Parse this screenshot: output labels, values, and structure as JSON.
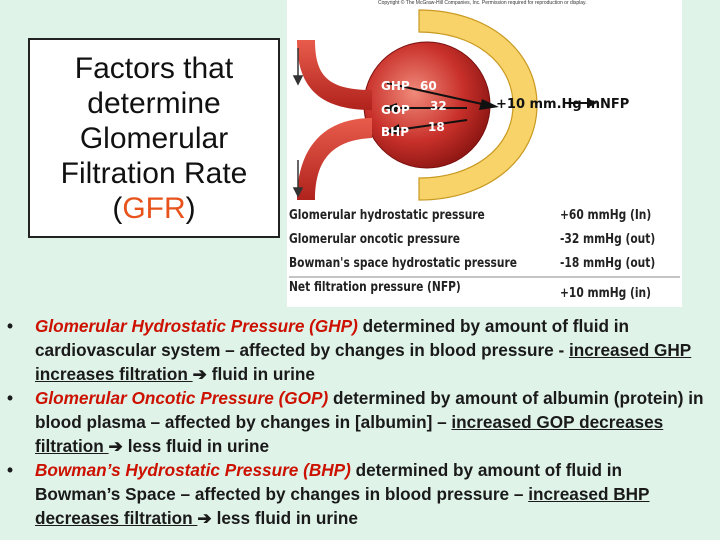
{
  "title": {
    "lines": [
      "Factors that",
      "determine",
      "Glomerular",
      "Filtration Rate"
    ],
    "acronym_open": "(",
    "acronym": "GFR",
    "acronym_close": ")"
  },
  "figure": {
    "copyright": "Copyright © The McGraw-Hill Companies, Inc. Permission required for reproduction or display.",
    "labels": {
      "ghp": "GHP",
      "gop": "GOP",
      "bhp": "BHP",
      "ghp_value": "60",
      "gop_value": "32",
      "bhp_value": "18",
      "net": "+10 mm.Hg in",
      "nfp": "NFP"
    },
    "pressure_table": [
      {
        "label": "Glomerular hydrostatic pressure",
        "value": "+60 mmHg (In)"
      },
      {
        "label": "Glomerular oncotic pressure",
        "value": "-32 mmHg (out)"
      },
      {
        "label": "Bowman's space hydrostatic pressure",
        "value": "-18 mmHg (out)"
      },
      {
        "label": "Net filtration pressure (NFP)",
        "value": "+10 mmHg (in)"
      }
    ]
  },
  "bullets": [
    {
      "marker": "•",
      "term": "Glomerular Hydrostatic Pressure (GHP)",
      "desc": " determined by amount of fluid in cardiovascular system – affected by changes in blood pressure - ",
      "effect": "increased GHP increases filtration ",
      "arrow": "➔",
      "result": " fluid in urine"
    },
    {
      "marker": "•",
      "term": "Glomerular Oncotic Pressure (GOP)",
      "desc": " determined by amount of albumin (protein) in blood plasma – affected by changes in [albumin] – ",
      "effect": "increased GOP decreases filtration ",
      "arrow": "➔",
      "result": " less fluid in urine"
    },
    {
      "marker": "•",
      "term": "Bowman’s Hydrostatic Pressure (BHP)",
      "desc": " determined by amount of fluid in Bowman’s Space – affected by changes in blood pressure – ",
      "effect": "increased BHP decreases filtration ",
      "arrow": "➔",
      "result": " less fluid in urine"
    }
  ]
}
